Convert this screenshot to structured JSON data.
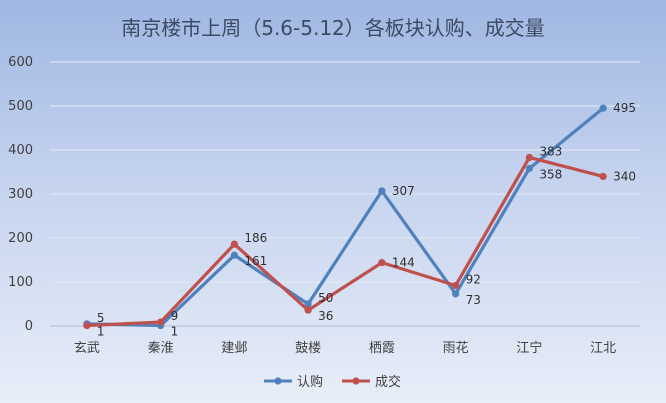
{
  "chart_data": {
    "type": "line",
    "title": "南京楼市上周（5.6-5.12）各板块认购、成交量",
    "categories": [
      "玄武",
      "秦淮",
      "建邺",
      "鼓楼",
      "栖霞",
      "雨花",
      "江宁",
      "江北"
    ],
    "series": [
      {
        "name": "认购",
        "color": "#4f81bd",
        "values": [
          5,
          1,
          161,
          50,
          307,
          73,
          358,
          495
        ]
      },
      {
        "name": "成交",
        "color": "#c0504d",
        "values": [
          1,
          9,
          186,
          36,
          144,
          92,
          383,
          340
        ]
      }
    ],
    "ylim": [
      0,
      600
    ],
    "yticks": [
      0,
      100,
      200,
      300,
      400,
      500,
      600
    ],
    "grid": true,
    "legend": "bottom"
  }
}
